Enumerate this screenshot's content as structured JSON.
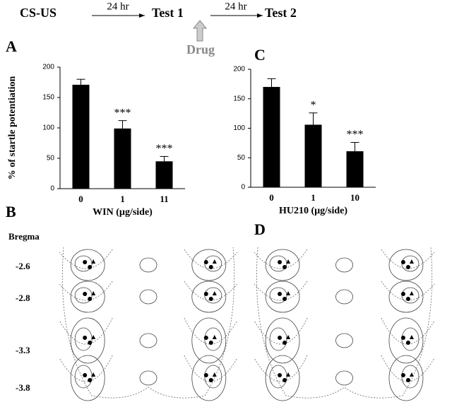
{
  "protocol": {
    "start": "CS-US",
    "interval_1": "24 hr",
    "test_1": "Test 1",
    "interval_2": "24 hr",
    "test_2": "Test 2",
    "drug": "Drug"
  },
  "panels": {
    "a": "A",
    "b": "B",
    "c": "C",
    "d": "D"
  },
  "bregma": {
    "title": "Bregma",
    "levels": [
      "-2.6",
      "-2.8",
      "-3.3",
      "-3.8"
    ]
  },
  "chart_data": [
    {
      "type": "bar",
      "ylabel": "% of startle potentiation",
      "xlabel": "WIN (µg/side)",
      "categories": [
        "0",
        "1",
        "11"
      ],
      "values": [
        171,
        99,
        45
      ],
      "errors": [
        9,
        13,
        8
      ],
      "annotations": [
        null,
        "***",
        "***"
      ],
      "color": "#000000",
      "ylim": [
        0,
        200
      ],
      "yticks": [
        0,
        50,
        100,
        150,
        200
      ]
    },
    {
      "type": "bar",
      "xlabel": "HU210 (µg/side)",
      "categories": [
        "0",
        "1",
        "10"
      ],
      "values": [
        170,
        106,
        61
      ],
      "errors": [
        14,
        20,
        15
      ],
      "annotations": [
        null,
        "*",
        "***"
      ],
      "color": "#000000",
      "ylim": [
        0,
        200
      ],
      "yticks": [
        0,
        50,
        100,
        150,
        200
      ]
    }
  ]
}
